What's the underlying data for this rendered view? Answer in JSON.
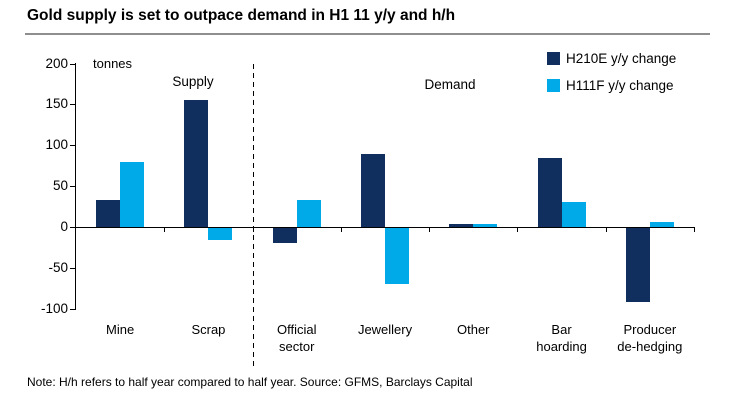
{
  "title": "Gold supply is set to outpace demand in H1 11 y/y and h/h",
  "note": "Note: H/h refers to half year compared to half year. Source: GFMS, Barclays Capital",
  "chart_data": {
    "type": "bar",
    "title": "Gold supply is set to outpace demand in H1 11 y/y and h/h",
    "unit_label": "tonnes",
    "supply_label": "Supply",
    "demand_label": "Demand",
    "categories": [
      "Mine",
      "Scrap",
      "Official sector",
      "Jewellery",
      "Other",
      "Bar hoarding",
      "Producer de-hedging"
    ],
    "category_label_lines": [
      [
        "Mine"
      ],
      [
        "Scrap"
      ],
      [
        "Official",
        "sector"
      ],
      [
        "Jewellery"
      ],
      [
        "Other"
      ],
      [
        "Bar",
        "hoarding"
      ],
      [
        "Producer",
        "de-hedging"
      ]
    ],
    "series": [
      {
        "name": "H210E y/y change",
        "color": "#112f5e",
        "values": [
          33,
          155,
          -18,
          90,
          4,
          84,
          -90
        ]
      },
      {
        "name": "H111F y/y change",
        "color": "#00a9e8",
        "values": [
          80,
          -15,
          33,
          -68,
          4,
          31,
          6
        ]
      }
    ],
    "yticks": [
      200,
      150,
      100,
      50,
      0,
      -50,
      -100
    ],
    "ylim": [
      -100,
      200
    ],
    "ylabel": "tonnes",
    "grid": false,
    "legend_position": "top-right",
    "separator_between": [
      "Scrap",
      "Official sector"
    ]
  }
}
